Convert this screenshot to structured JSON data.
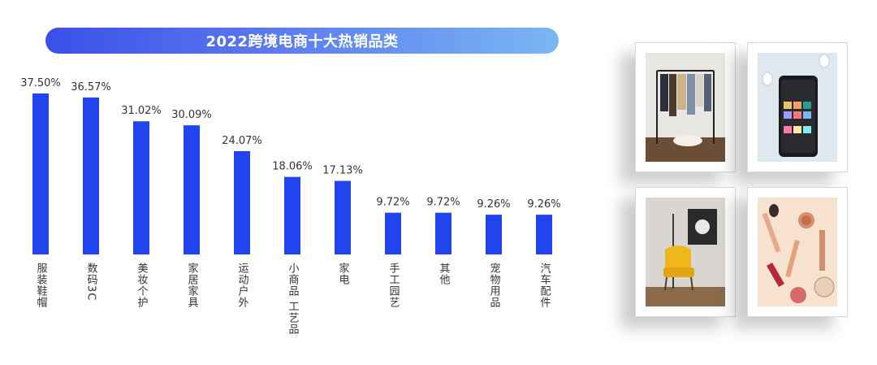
{
  "title": "2022跨境电商十大热销品类",
  "colors": {
    "bar": "#2244ee",
    "label": "#333333",
    "title_text": "#ffffff"
  },
  "chart_data": {
    "type": "bar",
    "categories": [
      "服装鞋帽",
      "数码3C",
      "美妆个护",
      "家居家具",
      "运动户外",
      "小商品 工艺品",
      "家电",
      "手工园艺",
      "其他",
      "宠物用品",
      "汽车配件"
    ],
    "values": [
      37.5,
      36.57,
      31.02,
      30.09,
      24.07,
      18.06,
      17.13,
      9.72,
      9.72,
      9.26,
      9.26
    ],
    "value_labels": [
      "37.50%",
      "36.57%",
      "31.02%",
      "30.09%",
      "24.07%",
      "18.06%",
      "17.13%",
      "9.72%",
      "9.72%",
      "9.26%",
      "9.26%"
    ],
    "ylim": [
      0,
      37.5
    ],
    "grid": false,
    "legend": "none"
  },
  "photos": [
    {
      "icon": "clothing-rack-photo"
    },
    {
      "icon": "smartphone-earbuds-photo"
    },
    {
      "icon": "yellow-armchair-photo"
    },
    {
      "icon": "cosmetics-photo"
    }
  ]
}
